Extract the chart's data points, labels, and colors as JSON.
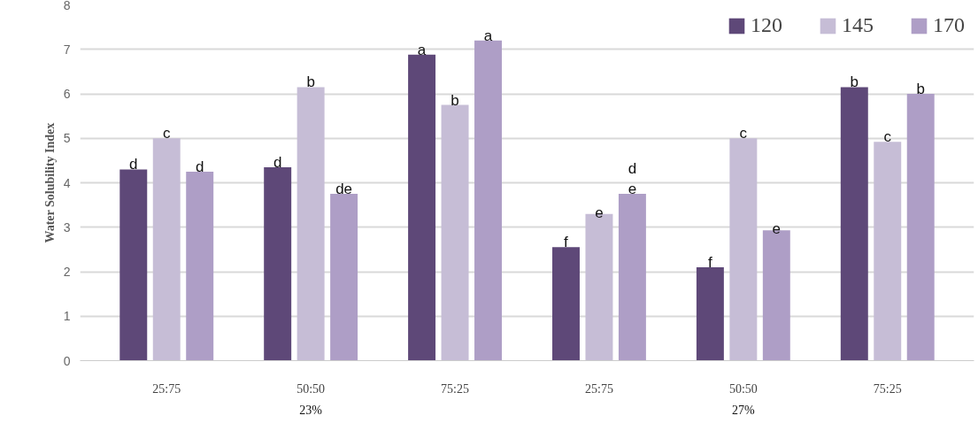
{
  "chart_data": {
    "type": "bar",
    "ylabel": "Water Solubility Index",
    "categories": [
      "25:75",
      "50:50",
      "75:25",
      "25:75",
      "50:50",
      "75:25"
    ],
    "series": [
      {
        "name": "120",
        "color": "#5e4878",
        "values": [
          4.3,
          4.35,
          6.88,
          2.55,
          2.1,
          6.15
        ],
        "value_labels": [
          "d",
          "d",
          "a",
          "f",
          "f",
          "b"
        ]
      },
      {
        "name": "145",
        "color": "#c6bdd6",
        "values": [
          5.0,
          6.15,
          5.75,
          3.3,
          5.0,
          4.92
        ],
        "value_labels": [
          "c",
          "b",
          "b",
          "e",
          "c",
          "c"
        ]
      },
      {
        "name": "170",
        "color": "#ae9ec6",
        "values": [
          4.25,
          3.75,
          7.2,
          3.75,
          2.93,
          6.0
        ],
        "value_labels": [
          "d",
          "de",
          "a",
          "d\ne",
          "e",
          "b"
        ]
      }
    ],
    "annotations": [
      "23%",
      "27%"
    ],
    "ylim": [
      0,
      8
    ],
    "yticks": [
      0,
      1,
      2,
      3,
      4,
      5,
      6,
      7,
      8
    ],
    "grid": "y",
    "legend": "top right"
  }
}
